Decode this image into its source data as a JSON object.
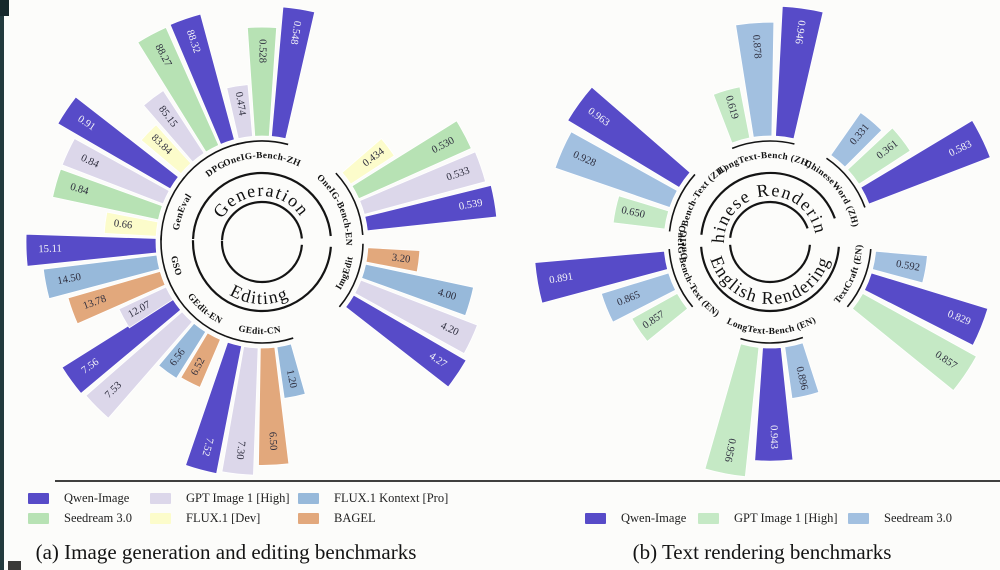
{
  "colors": {
    "arc": "#141414",
    "value_label": "#2e2e3e",
    "qwen_value_label": "#f5f5f8",
    "background": "#fcfcfa"
  },
  "chart_data": [
    {
      "type": "radial_bar",
      "caption": "(a) Image generation and editing benchmarks",
      "center": {
        "x": 262,
        "y": 242
      },
      "bar_step_deg": 9,
      "bar_halfwidth_deg": 3.9,
      "palette": {
        "Qwen-Image": "#574bc8",
        "GPT Image 1 [High]": "#dcd7ea",
        "FLUX.1 Kontext [Pro]": "#97b9da",
        "Seedream 3.0": "#b7e2b4",
        "FLUX.1 [Dev]": "#fcfccb",
        "BAGEL": "#e2a87c"
      },
      "sections": [
        {
          "title": "Generation",
          "arc": [
            -87.5,
            85
          ],
          "groups": [
            {
              "label": "GenEval",
              "start": -83,
              "bars": [
                {
                  "series": "FLUX.1 [Dev]",
                  "value": "0.66"
                },
                {
                  "series": "Seedream 3.0",
                  "value": "0.84"
                },
                {
                  "series": "GPT Image 1 [High]",
                  "value": "0.84"
                },
                {
                  "series": "Qwen-Image",
                  "value": "0.91"
                }
              ]
            },
            {
              "label": "DPG",
              "start": -46,
              "bars": [
                {
                  "series": "FLUX.1 [Dev]",
                  "value": "83.84"
                },
                {
                  "series": "GPT Image 1 [High]",
                  "value": "85.15"
                },
                {
                  "series": "Seedream 3.0",
                  "value": "88.27"
                },
                {
                  "series": "Qwen-Image",
                  "value": "88.32"
                }
              ]
            },
            {
              "label": "OneIG-Bench-ZH",
              "start": -9,
              "bars": [
                {
                  "series": "GPT Image 1 [High]",
                  "value": "0.474"
                },
                {
                  "series": "Seedream 3.0",
                  "value": "0.528"
                },
                {
                  "series": "Qwen-Image",
                  "value": "0.548"
                }
              ]
            },
            {
              "label": "OneIG-Bench-EN",
              "start": 53,
              "bars": [
                {
                  "series": "FLUX.1 [Dev]",
                  "value": "0.434"
                },
                {
                  "series": "Seedream 3.0",
                  "value": "0.530"
                },
                {
                  "series": "GPT Image 1 [High]",
                  "value": "0.533"
                },
                {
                  "series": "Qwen-Image",
                  "value": "0.539"
                }
              ]
            }
          ]
        },
        {
          "title": "Editing",
          "arc": [
            94,
            271.5
          ],
          "groups": [
            {
              "label": "ImgEdit",
              "start": 97,
              "bars": [
                {
                  "series": "BAGEL",
                  "value": "3.20"
                },
                {
                  "series": "FLUX.1 Kontext [Pro]",
                  "value": "4.00"
                },
                {
                  "series": "GPT Image 1 [High]",
                  "value": "4.20"
                },
                {
                  "series": "Qwen-Image",
                  "value": "4.27"
                }
              ]
            },
            {
              "label": "GEdit-CN",
              "start": 168,
              "bars": [
                {
                  "series": "FLUX.1 Kontext [Pro]",
                  "value": "1.20"
                },
                {
                  "series": "BAGEL",
                  "value": "6.50"
                },
                {
                  "series": "GPT Image 1 [High]",
                  "value": "7.30"
                },
                {
                  "series": "Qwen-Image",
                  "value": "7.52"
                }
              ]
            },
            {
              "label": "GEdit-EN",
              "start": 207,
              "bars": [
                {
                  "series": "BAGEL",
                  "value": "6.52"
                },
                {
                  "series": "FLUX.1 Kontext [Pro]",
                  "value": "6.56"
                },
                {
                  "series": "GPT Image 1 [High]",
                  "value": "7.53"
                },
                {
                  "series": "Qwen-Image",
                  "value": "7.56"
                }
              ]
            },
            {
              "label": "GSO",
              "start": 241,
              "bars": [
                {
                  "series": "GPT Image 1 [High]",
                  "value": "12.07"
                },
                {
                  "series": "BAGEL",
                  "value": "13.78"
                },
                {
                  "series": "FLUX.1 Kontext [Pro]",
                  "value": "14.50"
                },
                {
                  "series": "Qwen-Image",
                  "value": "15.11"
                }
              ]
            }
          ]
        }
      ],
      "legend": {
        "items": [
          "Qwen-Image",
          "GPT Image 1 [High]",
          "FLUX.1 Kontext [Pro]",
          "Seedream 3.0",
          "FLUX.1 [Dev]",
          "BAGEL"
        ]
      }
    },
    {
      "type": "radial_bar",
      "caption": "(b) Text rendering benchmarks",
      "center": {
        "x": 770,
        "y": 242
      },
      "bar_step_deg": 12,
      "bar_halfwidth_deg": 5.0,
      "palette": {
        "Qwen-Image": "#574bc8",
        "GPT Image 1 [High]": "#c5e9c5",
        "Seedream 3.0": "#a2c0e0"
      },
      "sections": [
        {
          "title": "Chinese Rendering",
          "arc": [
            -84,
            70
          ],
          "groups": [
            {
              "label": "OneIG-Bench-Text (ZH)",
              "start": -78,
              "bars": [
                {
                  "series": "GPT Image 1 [High]",
                  "value": "0.650"
                },
                {
                  "series": "Seedream 3.0",
                  "value": "0.928"
                },
                {
                  "series": "Qwen-Image",
                  "value": "0.963"
                }
              ]
            },
            {
              "label": "LongText-Bench (ZH)",
              "start": -16,
              "bars": [
                {
                  "series": "GPT Image 1 [High]",
                  "value": "0.619"
                },
                {
                  "series": "Seedream 3.0",
                  "value": "0.878"
                },
                {
                  "series": "Qwen-Image",
                  "value": "0.946"
                }
              ]
            },
            {
              "label": "ChineseWord (ZH)",
              "start": 40,
              "bars": [
                {
                  "series": "Seedream 3.0",
                  "value": "0.331"
                },
                {
                  "series": "GPT Image 1 [High]",
                  "value": "0.361"
                },
                {
                  "series": "Qwen-Image",
                  "value": "0.583"
                }
              ]
            }
          ]
        },
        {
          "title": "English Rendering",
          "arc": [
            94,
            266
          ],
          "groups": [
            {
              "label": "TextCraft (EN)",
              "start": 100,
              "bars": [
                {
                  "series": "Seedream 3.0",
                  "value": "0.592"
                },
                {
                  "series": "Qwen-Image",
                  "value": "0.829"
                },
                {
                  "series": "GPT Image 1 [High]",
                  "value": "0.857"
                }
              ]
            },
            {
              "label": "LongText-Bench (EN)",
              "start": 167,
              "bars": [
                {
                  "series": "Seedream 3.0",
                  "value": "0.896"
                },
                {
                  "series": "Qwen-Image",
                  "value": "0.943"
                },
                {
                  "series": "GPT Image 1 [High]",
                  "value": "0.956"
                }
              ]
            },
            {
              "label": "OneIG-Bench-Text (EN)",
              "start": 236,
              "bars": [
                {
                  "series": "GPT Image 1 [High]",
                  "value": "0.857"
                },
                {
                  "series": "Seedream 3.0",
                  "value": "0.865"
                },
                {
                  "series": "Qwen-Image",
                  "value": "0.891"
                }
              ]
            }
          ]
        }
      ],
      "legend": {
        "items": [
          "Qwen-Image",
          "GPT Image 1 [High]",
          "Seedream 3.0"
        ]
      }
    }
  ]
}
